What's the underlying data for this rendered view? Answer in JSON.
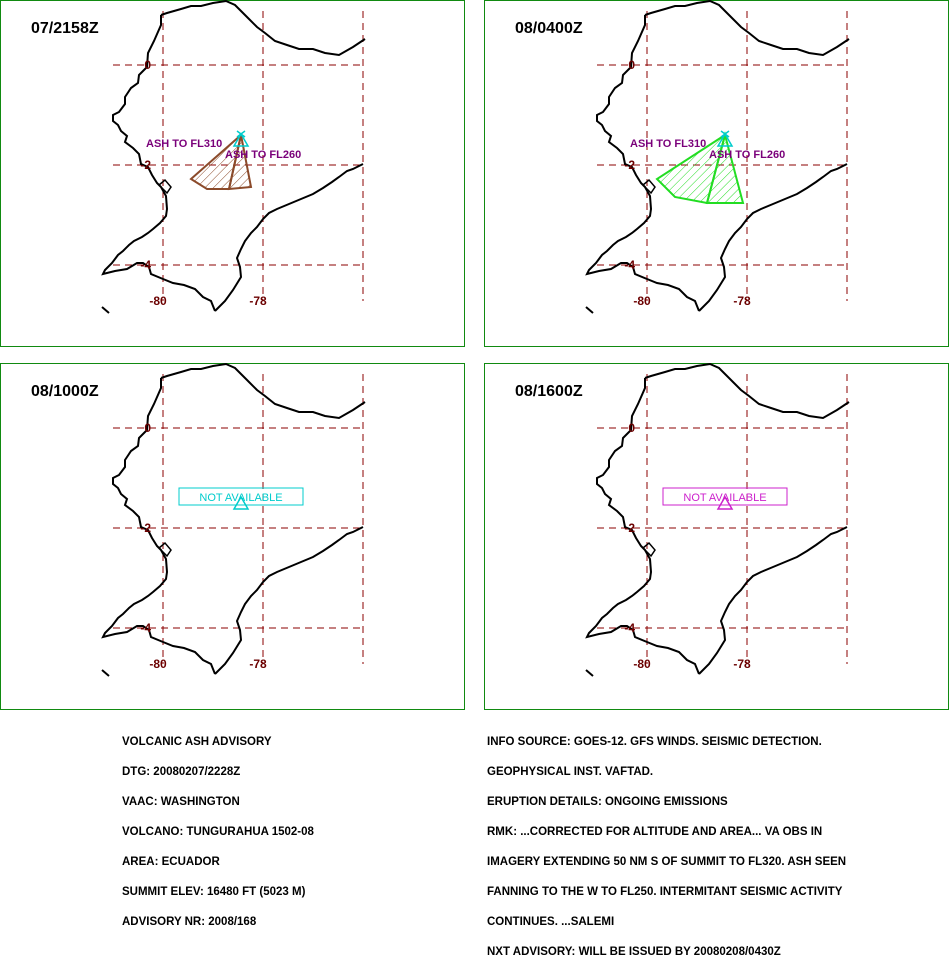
{
  "panels": [
    {
      "time": "07/2158Z",
      "ash_labels": [
        {
          "text": "ASH TO FL310"
        },
        {
          "text": "ASH TO FL260"
        }
      ],
      "ash_color": "#8b4a2a",
      "status_text": ""
    },
    {
      "time": "08/0400Z",
      "ash_labels": [
        {
          "text": "ASH TO FL310"
        },
        {
          "text": "ASH TO FL260"
        }
      ],
      "ash_color": "#22dd22",
      "status_text": ""
    },
    {
      "time": "08/1000Z",
      "ash_labels": [],
      "ash_color": "",
      "status_text": "NOT AVAILABLE",
      "status_color": "#00cccc"
    },
    {
      "time": "08/1600Z",
      "ash_labels": [],
      "ash_color": "",
      "status_text": "NOT AVAILABLE",
      "status_color": "#cc22cc"
    }
  ],
  "map": {
    "lat_labels": [
      "0",
      "-2",
      "-4"
    ],
    "lon_labels": [
      "-80",
      "-78"
    ],
    "grid_color": "#8b0000",
    "label_color": "#6b0000",
    "coast_color": "#000000",
    "volcano_color": "#00cccc",
    "ash_label_color": "#7a007a"
  },
  "advisory_left": [
    "VOLCANIC ASH ADVISORY",
    "DTG: 20080207/2228Z",
    "VAAC: WASHINGTON",
    "VOLCANO: TUNGURAHUA 1502-08",
    "AREA: ECUADOR",
    "SUMMIT ELEV: 16480 FT (5023 M)",
    "ADVISORY NR: 2008/168"
  ],
  "advisory_right": [
    "INFO SOURCE: GOES-12. GFS WINDS. SEISMIC DETECTION.",
    "GEOPHYSICAL INST. VAFTAD.",
    "ERUPTION DETAILS: ONGOING EMISSIONS",
    "RMK: ...CORRECTED FOR ALTITUDE AND AREA... VA OBS IN",
    "IMAGERY EXTENDING 50 NM S OF SUMMIT TO FL320. ASH SEEN",
    "FANNING TO THE W TO FL250. INTERMITANT SEISMIC ACTIVITY",
    "CONTINUES. ...SALEMI",
    "NXT ADVISORY: WILL BE ISSUED BY 20080208/0430Z"
  ]
}
